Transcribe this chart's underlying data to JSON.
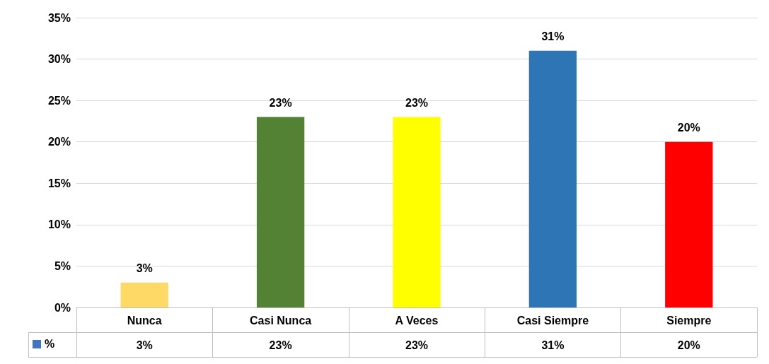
{
  "chart_data": {
    "type": "bar",
    "categories": [
      "Nunca",
      "Casi Nunca",
      "A Veces",
      "Casi Siempre",
      "Siempre"
    ],
    "series": [
      {
        "name": "%",
        "color": "#4472c4",
        "colors": [
          "#ffd966",
          "#548235",
          "#ffff00",
          "#2e75b6",
          "#ff0000"
        ],
        "values": [
          3,
          23,
          23,
          31,
          20
        ],
        "value_labels": [
          "3%",
          "23%",
          "23%",
          "31%",
          "20%"
        ]
      }
    ],
    "ylim": [
      0,
      35
    ],
    "yticks": [
      {
        "value": 0,
        "label": "0%"
      },
      {
        "value": 5,
        "label": "5%"
      },
      {
        "value": 10,
        "label": "10%"
      },
      {
        "value": 15,
        "label": "15%"
      },
      {
        "value": 20,
        "label": "20%"
      },
      {
        "value": 25,
        "label": "25%"
      },
      {
        "value": 30,
        "label": "30%"
      },
      {
        "value": 35,
        "label": "35%"
      }
    ],
    "grid": "y",
    "legend": "bottom left"
  }
}
